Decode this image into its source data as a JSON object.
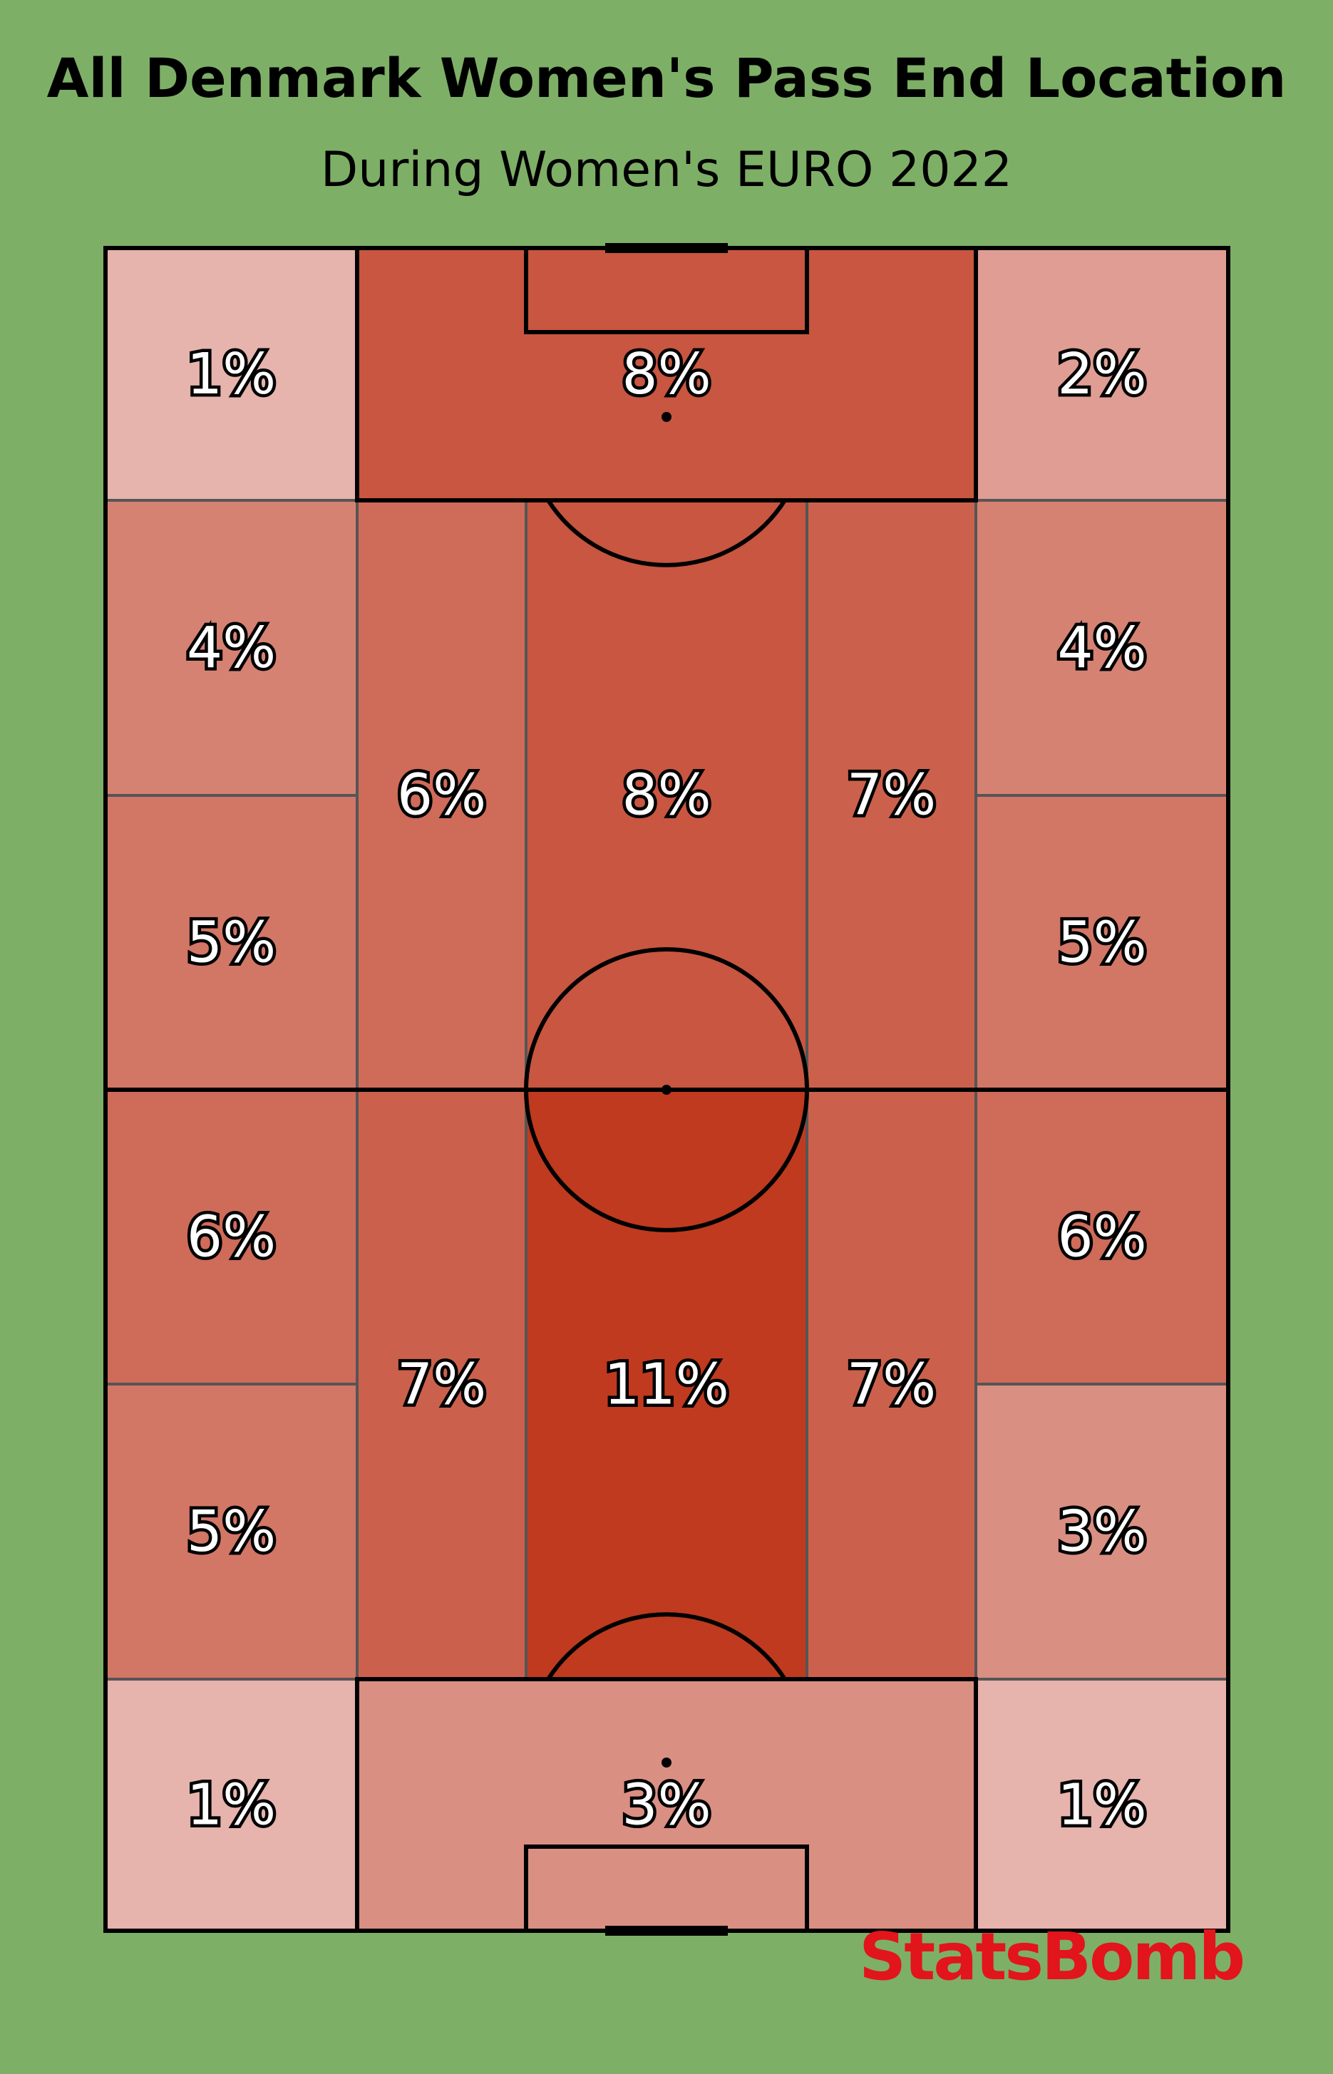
{
  "title": "All Denmark Women's Pass End Location",
  "subtitle": "During Women's EURO 2022",
  "logo_text": "StatsBomb",
  "colors": {
    "background": "#7eaf67",
    "heat_low": "#e6b3ad",
    "heat_high": "#bf3a1f",
    "line": "#000000",
    "zone_line": "#555555",
    "logo": "#e2141c"
  },
  "chart_data": {
    "type": "heatmap",
    "title": "All Denmark Women's Pass End Location",
    "subtitle": "During Women's EURO 2022",
    "unit": "%",
    "zones": [
      {
        "id": "top-left-corner",
        "value": 1,
        "label": "1%"
      },
      {
        "id": "top-box",
        "value": 8,
        "label": "8%"
      },
      {
        "id": "top-right-corner",
        "value": 2,
        "label": "2%"
      },
      {
        "id": "upper-left-wing-top",
        "value": 4,
        "label": "4%"
      },
      {
        "id": "upper-left-wing-bottom",
        "value": 5,
        "label": "5%"
      },
      {
        "id": "upper-left-halfspace",
        "value": 6,
        "label": "6%"
      },
      {
        "id": "upper-center",
        "value": 8,
        "label": "8%"
      },
      {
        "id": "upper-right-halfspace",
        "value": 7,
        "label": "7%"
      },
      {
        "id": "upper-right-wing-top",
        "value": 4,
        "label": "4%"
      },
      {
        "id": "upper-right-wing-bottom",
        "value": 5,
        "label": "5%"
      },
      {
        "id": "lower-left-wing-top",
        "value": 6,
        "label": "6%"
      },
      {
        "id": "lower-left-wing-bottom",
        "value": 5,
        "label": "5%"
      },
      {
        "id": "lower-left-halfspace",
        "value": 7,
        "label": "7%"
      },
      {
        "id": "lower-center",
        "value": 11,
        "label": "11%"
      },
      {
        "id": "lower-right-halfspace",
        "value": 7,
        "label": "7%"
      },
      {
        "id": "lower-right-wing-top",
        "value": 6,
        "label": "6%"
      },
      {
        "id": "lower-right-wing-bottom",
        "value": 3,
        "label": "3%"
      },
      {
        "id": "bottom-left-corner",
        "value": 1,
        "label": "1%"
      },
      {
        "id": "bottom-box",
        "value": 3,
        "label": "3%"
      },
      {
        "id": "bottom-right-corner",
        "value": 1,
        "label": "1%"
      }
    ]
  }
}
